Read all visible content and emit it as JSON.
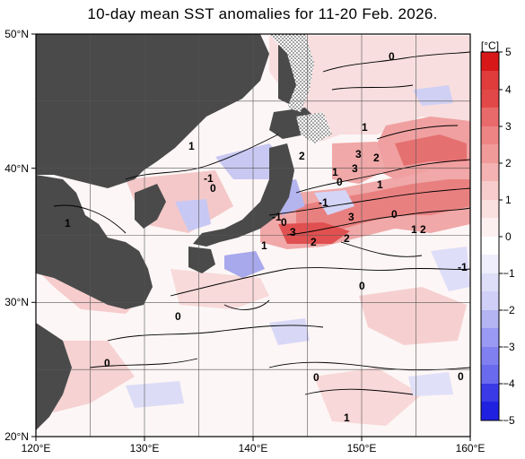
{
  "title": "10-day mean SST anomalies for 11-20 Feb. 2026.",
  "map": {
    "lon_labels": [
      "120°E",
      "130°E",
      "140°E",
      "150°E",
      "160°E"
    ],
    "lat_labels": [
      "50°N",
      "40°N",
      "30°N",
      "20°N"
    ],
    "lon_range": [
      120,
      160
    ],
    "lat_range": [
      20,
      50
    ],
    "grid": true,
    "contour_labels": [
      "0",
      "1",
      "-1",
      "0",
      "1",
      "2",
      "3",
      "1",
      "3",
      "2",
      "1",
      "0",
      "-1",
      "3",
      "2",
      "0",
      "1",
      "2",
      "3",
      "-1",
      "0",
      "1",
      "2",
      "0",
      "0",
      "0",
      "0",
      "1",
      "0",
      "-1",
      "1"
    ]
  },
  "colorbar": {
    "unit": "[°C]",
    "ticks": [
      "5",
      "4",
      "3",
      "2",
      "1",
      "0",
      "−1",
      "−2",
      "−3",
      "−4",
      "−5"
    ],
    "range": [
      -5,
      5
    ],
    "colors": {
      "neg5": "#2020e0",
      "neg4": "#3a3ae6",
      "neg3": "#6a6aee",
      "neg2": "#9a9af4",
      "neg1": "#cfcff8",
      "neg0": "#eeeefc",
      "pos0": "#fdf0f0",
      "pos1": "#f8cccc",
      "pos2": "#f19a9a",
      "pos3": "#e96a6a",
      "pos4": "#e03c3c",
      "pos5": "#d81818"
    }
  },
  "colors": {
    "land": "#4a4a4a",
    "grid": "#555555",
    "frame": "#000000"
  }
}
